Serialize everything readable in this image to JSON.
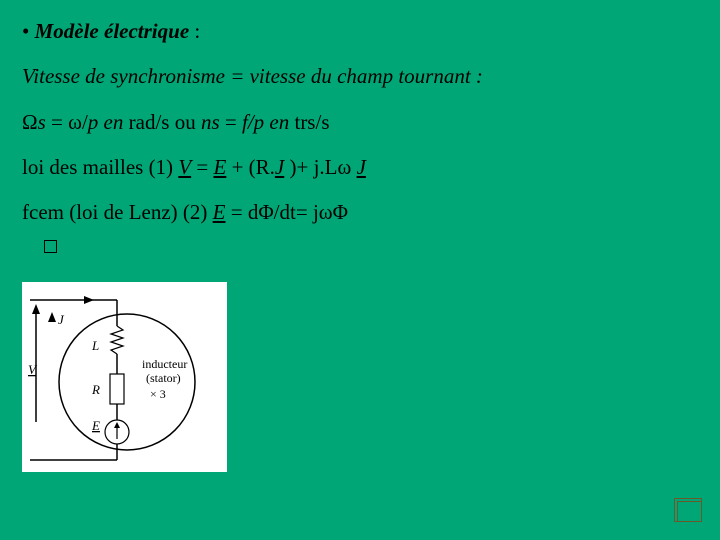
{
  "slide": {
    "bg_color": "#00a675",
    "text_color": "#000000",
    "font_family": "Times New Roman",
    "font_size_pt": 16
  },
  "lines": {
    "l1_bullet_prefix": "• ",
    "l1_label": "Modèle électrique",
    "l1_colon": " :",
    "l2": "Vitesse de synchronisme = vitesse du champ tournant :",
    "l3_a": " Ω",
    "l3_b": "s",
    "l3_c": " = ω/",
    "l3_d": "p en",
    "l3_e": " rad/s ou ",
    "l3_f": "ns",
    "l3_g": " = ",
    "l3_h": "f/p en",
    "l3_i": " trs/s",
    "l4_a": "loi des mailles (1) ",
    "l4_V": "V",
    "l4_b": " = ",
    "l4_E": "E",
    "l4_c": " + (R.",
    "l4_J1": "J",
    "l4_d": " )+ j.Lω ",
    "l4_J2": "J",
    "l5_a": "fcem (loi de Lenz) (2) ",
    "l5_E": "E",
    "l5_b": " = dΦ/dt= jωΦ"
  },
  "diagram": {
    "panel_bg": "#ffffff",
    "labels": {
      "J": "J",
      "V": "V",
      "L": "L",
      "R": "R",
      "E": "E",
      "stator1": "inducteur",
      "stator2": "(stator)",
      "x3": "× 3"
    },
    "circle_r": 60,
    "stroke": "#000000"
  },
  "corner": {
    "stroke": "#6a5a2a"
  }
}
